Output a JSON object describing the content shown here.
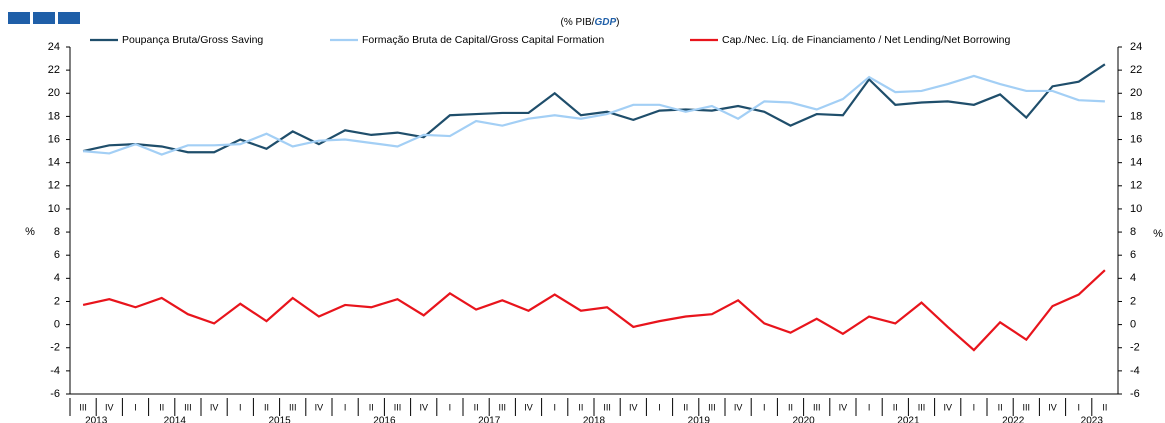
{
  "chart_data": {
    "type": "line",
    "subtitle": [
      "(% PIB/",
      "GDP",
      ")"
    ],
    "ylabel": "%",
    "ylim": [
      -6,
      24
    ],
    "yticks": [
      -6,
      -4,
      -2,
      0,
      2,
      4,
      6,
      8,
      10,
      12,
      14,
      16,
      18,
      20,
      22,
      24
    ],
    "categories": [
      "III",
      "IV",
      "I",
      "II",
      "III",
      "IV",
      "I",
      "II",
      "III",
      "IV",
      "I",
      "II",
      "III",
      "IV",
      "I",
      "II",
      "III",
      "IV",
      "I",
      "II",
      "III",
      "IV",
      "I",
      "II",
      "III",
      "IV",
      "I",
      "II",
      "III",
      "IV",
      "I",
      "II",
      "III",
      "IV",
      "I",
      "II",
      "III",
      "IV",
      "I",
      "II"
    ],
    "years": [
      "2013",
      "2014",
      "2015",
      "2016",
      "2017",
      "2018",
      "2019",
      "2020",
      "2021",
      "2022",
      "2023"
    ],
    "series": [
      {
        "name": "Poupança Bruta/Gross Saving",
        "color": "#1f4e6b",
        "values": [
          15.0,
          15.5,
          15.6,
          15.4,
          14.9,
          14.9,
          16.0,
          15.2,
          16.7,
          15.6,
          16.8,
          16.4,
          16.6,
          16.2,
          18.1,
          18.2,
          18.3,
          18.3,
          20.0,
          18.1,
          18.4,
          17.7,
          18.5,
          18.6,
          18.5,
          18.9,
          18.4,
          17.2,
          18.2,
          18.1,
          21.2,
          19.0,
          19.2,
          19.3,
          19.0,
          19.9,
          17.9,
          20.6,
          21.0,
          22.5
        ]
      },
      {
        "name": "Formação Bruta de Capital/Gross Capital Formation",
        "color": "#a3cff5",
        "values": [
          15.0,
          14.8,
          15.6,
          14.7,
          15.5,
          15.5,
          15.6,
          16.5,
          15.4,
          15.9,
          16.0,
          15.7,
          15.4,
          16.4,
          16.3,
          17.6,
          17.2,
          17.8,
          18.1,
          17.8,
          18.2,
          19.0,
          19.0,
          18.4,
          18.9,
          17.8,
          19.3,
          19.2,
          18.6,
          19.5,
          21.4,
          20.1,
          20.2,
          20.8,
          21.5,
          20.8,
          20.2,
          20.2,
          19.4,
          19.3
        ]
      },
      {
        "name": "Cap./Nec. Líq. de Financiamento / Net Lending/Net Borrowing",
        "color": "#e8141c",
        "values": [
          1.7,
          2.2,
          1.5,
          2.3,
          0.9,
          0.1,
          1.8,
          0.3,
          2.3,
          0.7,
          1.7,
          1.5,
          2.2,
          0.8,
          2.7,
          1.3,
          2.1,
          1.2,
          2.6,
          1.2,
          1.5,
          -0.2,
          0.3,
          0.7,
          0.9,
          2.1,
          0.1,
          -0.7,
          0.5,
          -0.8,
          0.7,
          0.1,
          1.9,
          -0.2,
          -2.2,
          0.2,
          -1.3,
          1.6,
          2.6,
          4.7
        ]
      }
    ]
  }
}
